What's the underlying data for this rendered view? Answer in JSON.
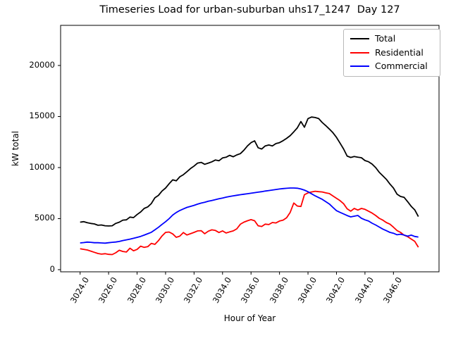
{
  "figure": {
    "title": "Timeseries Load for urban-suburban uhs17_1247  Day 127",
    "xlabel": "Hour of Year",
    "ylabel": "kW total"
  },
  "chart_data": {
    "type": "line",
    "title": "Timeseries Load for urban-suburban uhs17_1247  Day 127",
    "xlabel": "Hour of Year",
    "ylabel": "kW total",
    "grid": false,
    "legend_position": "upper right",
    "x_start": 3024.0,
    "x_step": 0.25,
    "xlim": [
      3022.63,
      3049.2
    ],
    "ylim": [
      -210,
      23930
    ],
    "xtick_values": [
      3024,
      3026,
      3028,
      3030,
      3032,
      3034,
      3036,
      3038,
      3040,
      3042,
      3044,
      3046
    ],
    "xtick_labels": [
      "3024.0",
      "3026.0",
      "3028.0",
      "3030.0",
      "3032.0",
      "3034.0",
      "3036.0",
      "3038.0",
      "3040.0",
      "3042.0",
      "3044.0",
      "3046.0"
    ],
    "ytick_values": [
      0,
      5000,
      10000,
      15000,
      20000
    ],
    "ytick_labels": [
      "0",
      "5000",
      "10000",
      "15000",
      "20000"
    ],
    "series": [
      {
        "name": "Total",
        "color": "#000000",
        "values": [
          4650,
          4700,
          4600,
          4530,
          4480,
          4350,
          4380,
          4300,
          4280,
          4300,
          4530,
          4650,
          4850,
          4880,
          5150,
          5100,
          5400,
          5650,
          6000,
          6150,
          6470,
          7040,
          7270,
          7700,
          8000,
          8420,
          8800,
          8700,
          9100,
          9300,
          9600,
          9900,
          10150,
          10440,
          10510,
          10320,
          10440,
          10560,
          10740,
          10670,
          10940,
          11010,
          11200,
          11060,
          11240,
          11360,
          11700,
          12120,
          12440,
          12620,
          11940,
          11820,
          12120,
          12210,
          12120,
          12350,
          12440,
          12630,
          12860,
          13130,
          13500,
          13890,
          14510,
          13950,
          14800,
          14950,
          14900,
          14800,
          14410,
          14110,
          13770,
          13420,
          12960,
          12400,
          11820,
          11130,
          10990,
          11080,
          11020,
          10960,
          10690,
          10570,
          10340,
          10000,
          9540,
          9200,
          8850,
          8390,
          8000,
          7400,
          7170,
          7080,
          6660,
          6200,
          5850,
          5200
        ]
      },
      {
        "name": "Residential",
        "color": "#ff0000",
        "values": [
          2050,
          1990,
          1930,
          1820,
          1700,
          1580,
          1520,
          1560,
          1500,
          1480,
          1650,
          1900,
          1780,
          1730,
          2100,
          1850,
          1980,
          2300,
          2180,
          2250,
          2575,
          2480,
          2840,
          3300,
          3650,
          3690,
          3500,
          3170,
          3290,
          3640,
          3400,
          3520,
          3650,
          3800,
          3820,
          3520,
          3770,
          3900,
          3840,
          3640,
          3800,
          3590,
          3700,
          3800,
          4000,
          4450,
          4650,
          4790,
          4900,
          4790,
          4300,
          4230,
          4460,
          4420,
          4620,
          4580,
          4760,
          4850,
          5080,
          5610,
          6530,
          6230,
          6190,
          7340,
          7520,
          7610,
          7680,
          7640,
          7610,
          7520,
          7450,
          7220,
          6990,
          6760,
          6460,
          5960,
          5730,
          6000,
          5840,
          6000,
          5910,
          5730,
          5540,
          5310,
          5030,
          4850,
          4620,
          4460,
          4160,
          3830,
          3650,
          3370,
          3230,
          3000,
          2770,
          2200
        ]
      },
      {
        "name": "Commercial",
        "color": "#0000ff",
        "values": [
          2620,
          2650,
          2700,
          2680,
          2640,
          2640,
          2620,
          2600,
          2640,
          2680,
          2710,
          2760,
          2850,
          2920,
          2990,
          3070,
          3160,
          3260,
          3380,
          3520,
          3660,
          3900,
          4150,
          4430,
          4700,
          5000,
          5350,
          5600,
          5800,
          5950,
          6100,
          6200,
          6300,
          6420,
          6520,
          6600,
          6700,
          6780,
          6860,
          6940,
          7020,
          7100,
          7170,
          7230,
          7290,
          7340,
          7390,
          7440,
          7490,
          7540,
          7590,
          7640,
          7700,
          7750,
          7800,
          7850,
          7900,
          7940,
          7970,
          8000,
          8000,
          7980,
          7900,
          7790,
          7630,
          7430,
          7230,
          7060,
          6890,
          6660,
          6430,
          6100,
          5780,
          5610,
          5460,
          5300,
          5170,
          5240,
          5310,
          5030,
          4880,
          4760,
          4550,
          4380,
          4180,
          3980,
          3820,
          3650,
          3570,
          3420,
          3470,
          3390,
          3280,
          3380,
          3250,
          3200
        ]
      }
    ]
  }
}
